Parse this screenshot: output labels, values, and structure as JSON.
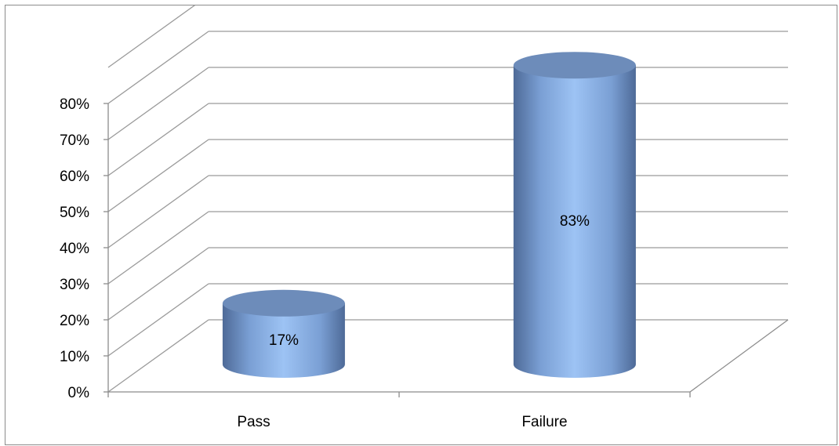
{
  "chart_data": {
    "type": "bar",
    "style": "3d-cylinder",
    "categories": [
      "Pass",
      "Failure"
    ],
    "values": [
      17,
      83
    ],
    "data_labels": [
      "17%",
      "83%"
    ],
    "ylim": [
      0,
      80
    ],
    "yticks": [
      0,
      10,
      20,
      30,
      40,
      50,
      60,
      70,
      80
    ],
    "ytick_labels": [
      "0%",
      "10%",
      "20%",
      "30%",
      "40%",
      "50%",
      "60%",
      "70%",
      "80%"
    ],
    "grid": true,
    "legend": "none",
    "title": "",
    "xlabel": "",
    "ylabel": ""
  },
  "colors": {
    "bar_light": "#9dc3f4",
    "bar_mid": "#7a9fd4",
    "bar_dark": "#4e6a97",
    "bar_top": "#6d8cba",
    "grid": "#9a9a9a",
    "axis": "#8c8c8c"
  }
}
